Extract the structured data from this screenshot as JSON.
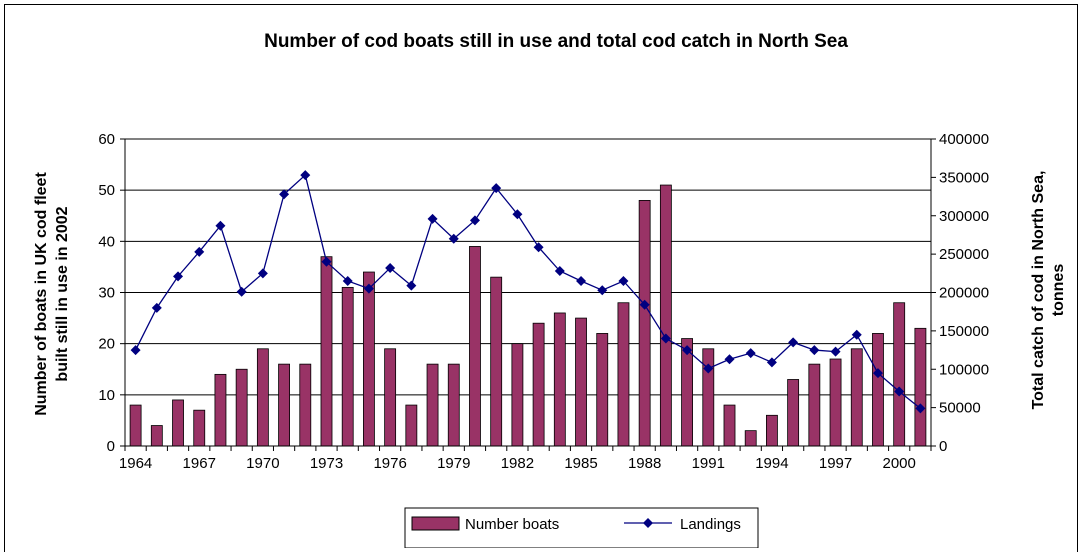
{
  "chart_data": {
    "type": "bar",
    "title": "Number of cod boats still in use and total cod catch in North Sea",
    "ylabel_left_line1": "Number of boats in UK cod fleet",
    "ylabel_left_line2": "built still in use in 2002",
    "ylabel_right_line1": "Total catch of cod in North Sea,",
    "ylabel_right_line2": "tonnes",
    "ylim_left": [
      0,
      60
    ],
    "ylim_right": [
      0,
      400000
    ],
    "left_ticks": [
      "0",
      "10",
      "20",
      "30",
      "40",
      "50",
      "60"
    ],
    "right_ticks": [
      "0",
      "50000",
      "100000",
      "150000",
      "200000",
      "250000",
      "300000",
      "350000",
      "400000"
    ],
    "x_tick_labels": [
      "1964",
      "1967",
      "1970",
      "1973",
      "1976",
      "1979",
      "1982",
      "1985",
      "1988",
      "1991",
      "1994",
      "1997",
      "2000"
    ],
    "categories": [
      1964,
      1965,
      1966,
      1967,
      1968,
      1969,
      1970,
      1971,
      1972,
      1973,
      1974,
      1975,
      1976,
      1977,
      1978,
      1979,
      1980,
      1981,
      1982,
      1983,
      1984,
      1985,
      1986,
      1987,
      1988,
      1989,
      1990,
      1991,
      1992,
      1993,
      1994,
      1995,
      1996,
      1997,
      1998,
      1999,
      2000,
      2001
    ],
    "grid": true,
    "legend_position": "bottom",
    "series": [
      {
        "name": "Number boats",
        "type": "bar",
        "axis": "left",
        "color": "#993366",
        "values": [
          8,
          4,
          9,
          7,
          14,
          15,
          19,
          16,
          16,
          37,
          31,
          34,
          19,
          8,
          16,
          16,
          39,
          33,
          20,
          24,
          26,
          25,
          22,
          28,
          48,
          51,
          21,
          19,
          8,
          3,
          6,
          13,
          16,
          17,
          19,
          22,
          28,
          23
        ]
      },
      {
        "name": "Landings",
        "type": "line",
        "axis": "right",
        "color": "#000080",
        "values": [
          125000,
          180000,
          221000,
          253000,
          287000,
          201000,
          225000,
          328000,
          353000,
          240000,
          215000,
          205000,
          232000,
          209000,
          296000,
          270000,
          294000,
          336000,
          302000,
          259000,
          228000,
          215000,
          203000,
          215000,
          184000,
          140000,
          125000,
          101000,
          113000,
          121000,
          109000,
          135000,
          125000,
          123000,
          145000,
          95000,
          71000,
          49000
        ]
      }
    ]
  }
}
